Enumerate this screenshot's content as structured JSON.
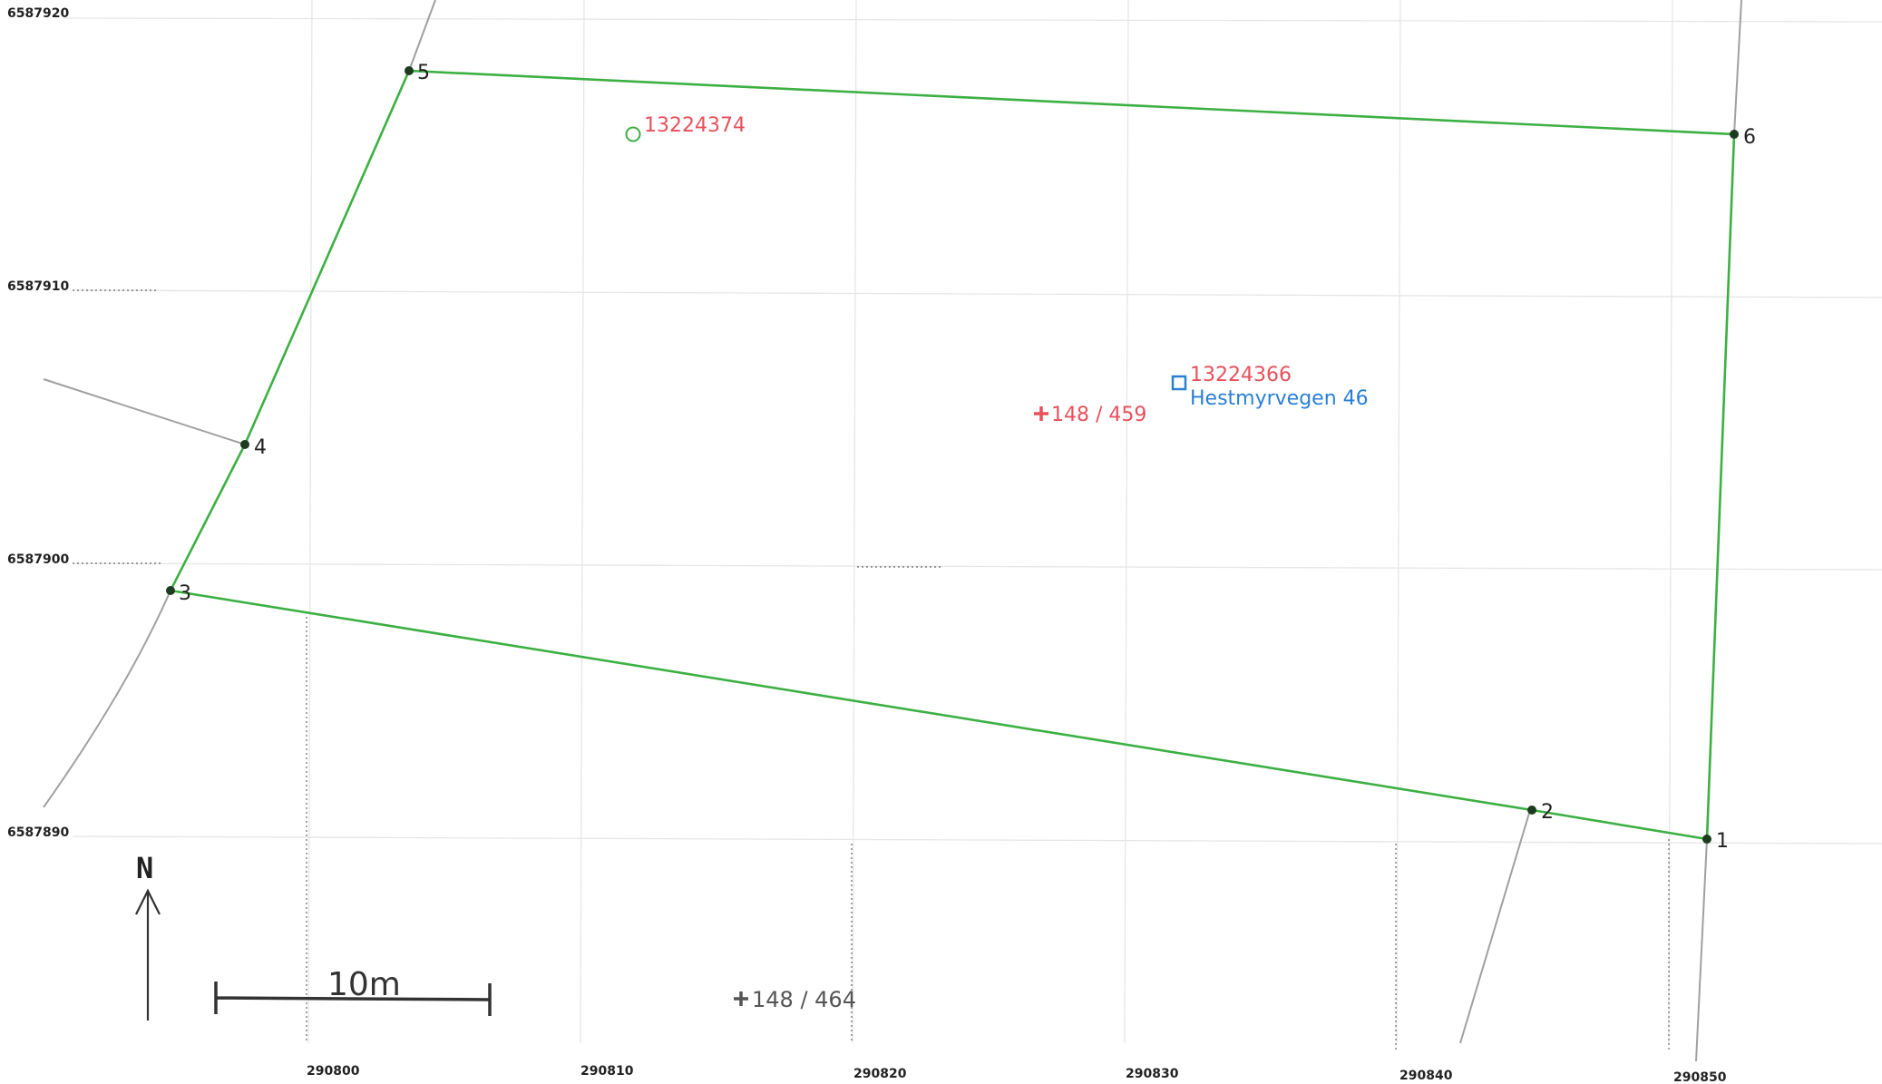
{
  "map": {
    "coordinate_labels": {
      "northing": [
        "6587920",
        "6587910",
        "6587900",
        "6587890"
      ],
      "easting": [
        "290800",
        "290810",
        "290820",
        "290830",
        "290840",
        "290850"
      ]
    },
    "vertices": [
      {
        "id": "1",
        "label": "1"
      },
      {
        "id": "2",
        "label": "2"
      },
      {
        "id": "3",
        "label": "3"
      },
      {
        "id": "4",
        "label": "4"
      },
      {
        "id": "5",
        "label": "5"
      },
      {
        "id": "6",
        "label": "6"
      }
    ],
    "boundary_order": [
      "1",
      "2",
      "3",
      "4",
      "5",
      "6"
    ],
    "labels": {
      "marker_point_id": "13224374",
      "building_id": "13224366",
      "address": "Hestmyrvegen 46",
      "parcel_main": "148 / 459",
      "parcel_south": "148 / 464"
    },
    "north_label": "N",
    "scale_label": "10m",
    "colors": {
      "boundary": "#3cb043",
      "red_label": "#e8505b",
      "blue_label": "#2a7fd4",
      "neighbor_line": "#a0a0a0",
      "grid": "#e4e4e4"
    }
  }
}
